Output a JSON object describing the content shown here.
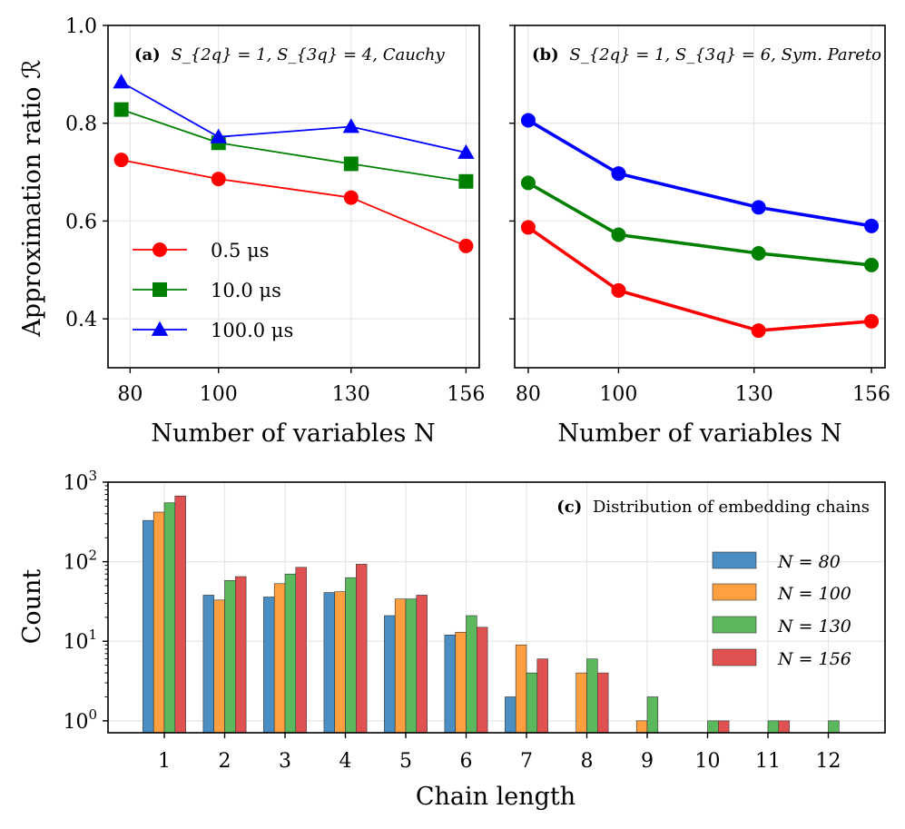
{
  "chart_data": [
    {
      "panel": "a",
      "type": "line",
      "annotation": {
        "tag": "(a)",
        "text": "S_{2q} = 1, S_{3q} = 4, Cauchy"
      },
      "xlabel": "Number of variables N",
      "ylabel": "Approximation ratio ℛ",
      "x": [
        78,
        100,
        130,
        156
      ],
      "xticks": [
        80,
        100,
        130,
        156
      ],
      "ylim": [
        0.3,
        1.0
      ],
      "yticks": [
        "0.4",
        "0.6",
        "0.8",
        "1.0"
      ],
      "legend_position": "lower-left",
      "series": [
        {
          "name": "0.5 μs",
          "color": "#ff0000",
          "marker": "circle",
          "values": [
            0.725,
            0.686,
            0.648,
            0.549
          ]
        },
        {
          "name": "10.0 μs",
          "color": "#008000",
          "marker": "square",
          "values": [
            0.828,
            0.76,
            0.717,
            0.681
          ]
        },
        {
          "name": "100.0 μs",
          "color": "#0000ff",
          "marker": "triangle",
          "values": [
            0.884,
            0.772,
            0.793,
            0.74
          ]
        }
      ]
    },
    {
      "panel": "b",
      "type": "line",
      "annotation": {
        "tag": "(b)",
        "text": "S_{2q} = 1, S_{3q} = 6, Sym. Pareto"
      },
      "xlabel": "Number of variables N",
      "x": [
        80,
        100,
        131,
        156
      ],
      "xticks": [
        80,
        100,
        130,
        156
      ],
      "ylim": [
        0.3,
        1.0
      ],
      "series": [
        {
          "name": "blue",
          "color": "#0000ff",
          "marker": "circle",
          "values": [
            0.806,
            0.697,
            0.628,
            0.59
          ]
        },
        {
          "name": "green",
          "color": "#008000",
          "marker": "circle",
          "values": [
            0.678,
            0.572,
            0.534,
            0.51
          ]
        },
        {
          "name": "red",
          "color": "#ff0000",
          "marker": "circle",
          "values": [
            0.587,
            0.458,
            0.376,
            0.395
          ]
        }
      ]
    },
    {
      "panel": "c",
      "type": "bar",
      "annotation": {
        "tag": "(c)",
        "text": "Distribution of embedding chains"
      },
      "xlabel": "Chain length",
      "ylabel": "Count",
      "yscale": "log",
      "ylim_log10": [
        -0.15,
        3
      ],
      "ytick_exponents": [
        "0",
        "1",
        "2",
        "3"
      ],
      "categories": [
        "1",
        "2",
        "3",
        "4",
        "5",
        "6",
        "7",
        "8",
        "9",
        "10",
        "11",
        "12"
      ],
      "legend_position": "right",
      "series": [
        {
          "name": "N = 80",
          "color": "#4a8ec4",
          "values": [
            330,
            38,
            36,
            41,
            21,
            12,
            2,
            0,
            0,
            0,
            0,
            0
          ]
        },
        {
          "name": "N = 100",
          "color": "#ff9f40",
          "values": [
            420,
            33,
            53,
            42,
            34,
            13,
            9,
            4,
            1,
            0,
            0,
            0
          ]
        },
        {
          "name": "N = 130",
          "color": "#5cb85c",
          "values": [
            550,
            58,
            70,
            63,
            34,
            21,
            4,
            6,
            2,
            1,
            1,
            1
          ]
        },
        {
          "name": "N = 156",
          "color": "#e05252",
          "values": [
            670,
            65,
            85,
            93,
            38,
            15,
            6,
            4,
            0,
            1,
            1,
            0
          ]
        }
      ]
    }
  ]
}
